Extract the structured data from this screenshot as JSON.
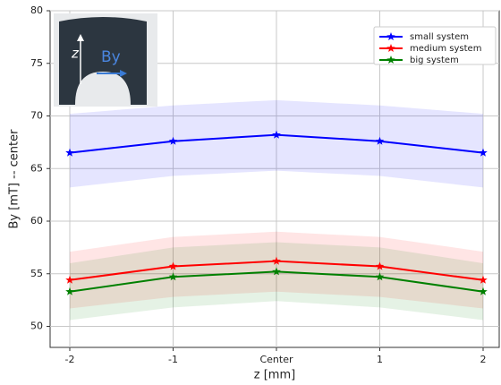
{
  "chart_data": {
    "type": "line",
    "y_label": "By [mT] -- center",
    "x_label": "z [mm]",
    "categories": [
      "-2",
      "-1",
      "Center",
      "1",
      "2"
    ],
    "series": [
      {
        "name": "small system",
        "color": "#0000ff",
        "values": [
          66.5,
          67.6,
          68.2,
          67.6,
          66.5
        ],
        "upper": [
          70.2,
          71.0,
          71.5,
          71.0,
          70.2
        ],
        "lower": [
          63.2,
          64.3,
          64.8,
          64.3,
          63.2
        ]
      },
      {
        "name": "medium system",
        "color": "#ff0000",
        "values": [
          54.4,
          55.7,
          56.2,
          55.7,
          54.4
        ],
        "upper": [
          57.1,
          58.5,
          59.0,
          58.5,
          57.1
        ],
        "lower": [
          51.7,
          52.8,
          53.3,
          52.8,
          51.7
        ]
      },
      {
        "name": "big system",
        "color": "#008000",
        "values": [
          53.3,
          54.7,
          55.2,
          54.7,
          53.3
        ],
        "upper": [
          56.0,
          57.5,
          58.0,
          57.5,
          56.0
        ],
        "lower": [
          50.6,
          51.8,
          52.4,
          51.8,
          50.6
        ]
      }
    ],
    "ylim": [
      48,
      80
    ],
    "yticks": [
      50,
      55,
      60,
      65,
      70,
      75,
      80
    ],
    "grid": true,
    "legend": "upper right",
    "annotations": [
      "z",
      "By"
    ]
  }
}
